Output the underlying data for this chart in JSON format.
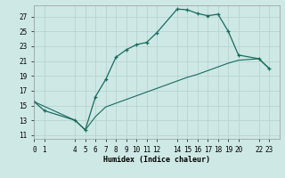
{
  "xlabel": "Humidex (Indice chaleur)",
  "bg_color": "#cde8e5",
  "line_color": "#1a6b5e",
  "grid_color": "#b8d4d0",
  "x_upper": [
    0,
    1,
    4,
    5,
    6,
    7,
    8,
    9,
    10,
    11,
    12,
    14,
    15,
    16,
    17,
    18,
    19,
    20,
    22,
    23
  ],
  "y_upper": [
    15.5,
    14.3,
    13.0,
    11.7,
    16.2,
    18.5,
    21.5,
    22.5,
    23.2,
    23.5,
    24.8,
    28.0,
    27.9,
    27.4,
    27.1,
    27.3,
    25.0,
    21.8,
    21.3,
    20.0
  ],
  "x_lower": [
    0,
    4,
    5,
    6,
    7,
    8,
    9,
    10,
    11,
    12,
    14,
    15,
    16,
    17,
    18,
    19,
    20,
    22,
    23
  ],
  "y_lower": [
    15.5,
    13.0,
    11.7,
    13.5,
    14.8,
    15.3,
    15.8,
    16.3,
    16.8,
    17.3,
    18.3,
    18.8,
    19.2,
    19.7,
    20.2,
    20.7,
    21.1,
    21.3,
    20.0
  ],
  "xtick_positions": [
    0,
    1,
    4,
    5,
    6,
    7,
    8,
    9,
    10,
    11,
    12,
    14,
    15,
    16,
    17,
    18,
    19,
    20,
    22,
    23
  ],
  "xtick_labels": [
    "0",
    "1",
    "4",
    "5",
    "6",
    "7",
    "8",
    "9",
    "10",
    "11",
    "12",
    "14",
    "15",
    "16",
    "17",
    "18",
    "19",
    "20",
    "22",
    "23"
  ],
  "ytick_values": [
    11,
    13,
    15,
    17,
    19,
    21,
    23,
    25,
    27
  ],
  "xlim": [
    0,
    24
  ],
  "ylim": [
    10.5,
    28.5
  ]
}
